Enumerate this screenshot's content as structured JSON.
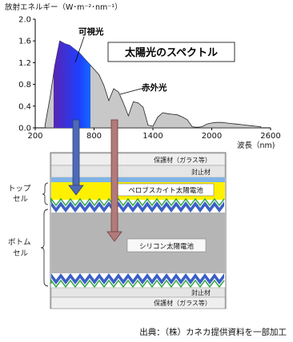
{
  "spectrum": {
    "ylabel": "放射エネルギー（W･m⁻²･nm⁻¹）",
    "title": "太陽光のスペクトル",
    "visible_label": "可視光",
    "infrared_label": "赤外光",
    "xlabel": "波長（nm)",
    "x_ticks": [
      "200",
      "800",
      "1400",
      "2000",
      "2600"
    ],
    "y_ticks": [
      "0.0",
      "0.4",
      "0.8",
      "1.2",
      "1.6",
      "2.0"
    ]
  },
  "chart_data": {
    "type": "area",
    "title": "太陽光のスペクトル",
    "xlabel": "波長（nm)",
    "ylabel": "放射エネルギー（W･m⁻²･nm⁻¹）",
    "xlim": [
      200,
      2600
    ],
    "ylim": [
      0,
      2.0
    ],
    "x_ticks": [
      200,
      800,
      1400,
      2000,
      2600
    ],
    "y_ticks": [
      0.0,
      0.4,
      0.8,
      1.2,
      1.6,
      2.0
    ],
    "series": [
      {
        "x": [
          300,
          350,
          400,
          450,
          500,
          550,
          600,
          650,
          700,
          750,
          800,
          850,
          900,
          950,
          1000,
          1050,
          1100,
          1150,
          1200,
          1250,
          1300,
          1350,
          1400,
          1450,
          1500,
          1550,
          1600,
          1650,
          1700,
          1750,
          1800,
          1850,
          1900,
          1950,
          2000,
          2050,
          2100,
          2150,
          2200,
          2250,
          2300,
          2350,
          2400,
          2450,
          2500
        ],
        "y": [
          0.05,
          0.55,
          1.15,
          1.6,
          1.55,
          1.52,
          1.45,
          1.38,
          1.28,
          1.18,
          1.08,
          0.98,
          0.78,
          0.5,
          0.72,
          0.66,
          0.45,
          0.22,
          0.48,
          0.46,
          0.38,
          0.05,
          0.03,
          0.2,
          0.28,
          0.26,
          0.25,
          0.24,
          0.2,
          0.15,
          0.02,
          0.01,
          0.02,
          0.07,
          0.09,
          0.1,
          0.1,
          0.09,
          0.08,
          0.07,
          0.06,
          0.05,
          0.04,
          0.03,
          0.02
        ]
      }
    ]
  },
  "cell": {
    "top_glass": "保護材（ガラス等）",
    "top_sealant": "封止材",
    "perovskite": "ペロブスカイト太陽電池",
    "silicon": "シリコン太陽電池",
    "bottom_sealant": "封止材",
    "bottom_glass": "保護材（ガラス等）",
    "top_cell_label": [
      "トップ",
      "セル"
    ],
    "bottom_cell_label": [
      "ボトム",
      "セル"
    ]
  },
  "caption": "出典：（株）カネカ提供資料を一部加工",
  "colors": {
    "visible_spectrum": [
      "#6a1b9a",
      "#1e40ff",
      "#00c8ff",
      "#00c040",
      "#f0f000",
      "#ff9900",
      "#ff1a1a"
    ],
    "arrow_visible": "#4f6ab5",
    "arrow_infrared": "#b27a7a",
    "perovskite_layer": "#fff000",
    "silicon_layer": "#b5b5b5",
    "glass_layer": "#efefef",
    "sealant_layer": "#e5e5e5"
  }
}
